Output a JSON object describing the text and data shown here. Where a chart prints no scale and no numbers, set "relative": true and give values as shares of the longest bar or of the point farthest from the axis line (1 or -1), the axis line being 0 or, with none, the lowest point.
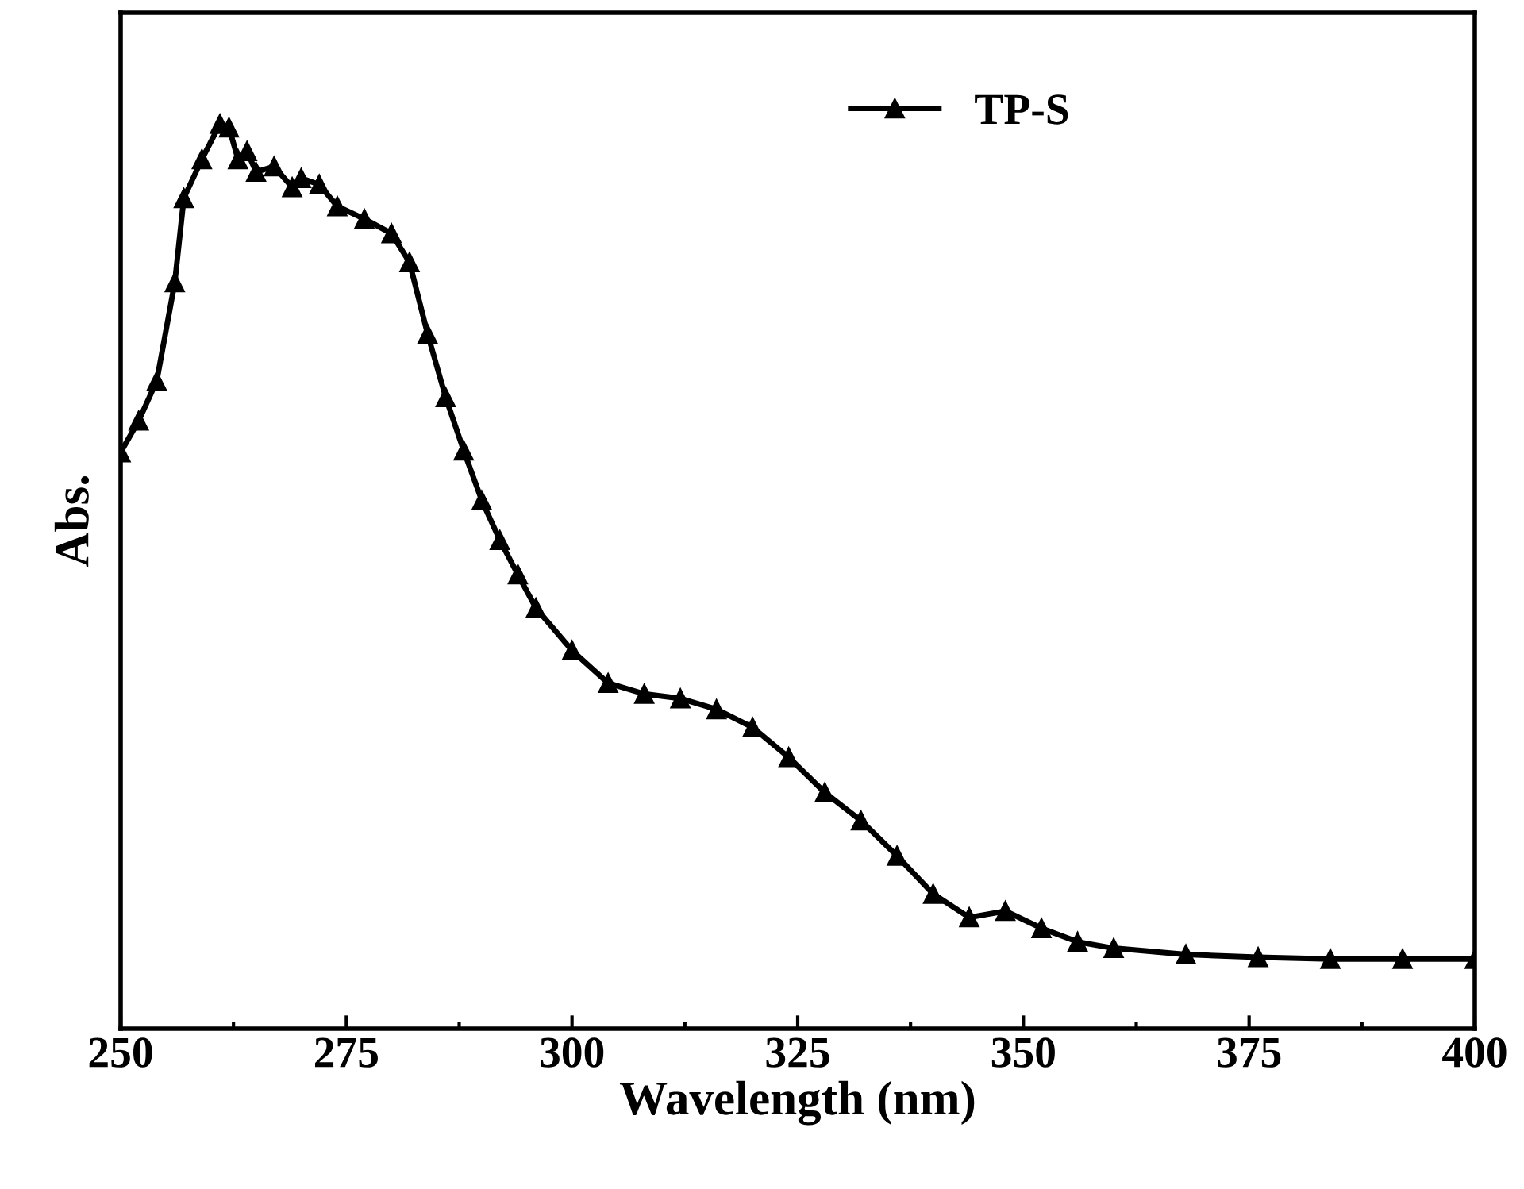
{
  "chart_data": {
    "type": "line",
    "xlabel": "Wavelength (nm)",
    "ylabel": "Abs.",
    "relative": true,
    "xlim": [
      250,
      400
    ],
    "xticks": [
      250,
      275,
      300,
      325,
      350,
      375,
      400
    ],
    "legend": "top",
    "marker": "triangle",
    "line_style": "solid",
    "grid": false,
    "tick_labels": "x",
    "x": [
      250,
      252,
      254,
      256,
      257,
      259,
      261,
      262,
      263,
      264,
      265,
      267,
      269,
      270,
      272,
      274,
      277,
      280,
      282,
      284,
      286,
      288,
      290,
      292,
      294,
      296,
      300,
      304,
      308,
      312,
      316,
      320,
      324,
      328,
      332,
      336,
      340,
      344,
      348,
      352,
      356,
      360,
      368,
      376,
      384,
      392,
      400
    ],
    "series": [
      {
        "name": "TP-S",
        "color": "#000000",
        "values": [
          0.637,
          0.672,
          0.716,
          0.825,
          0.918,
          0.961,
          1.0,
          0.996,
          0.961,
          0.97,
          0.947,
          0.953,
          0.93,
          0.94,
          0.933,
          0.909,
          0.895,
          0.879,
          0.847,
          0.768,
          0.698,
          0.639,
          0.584,
          0.54,
          0.502,
          0.465,
          0.418,
          0.382,
          0.37,
          0.365,
          0.353,
          0.333,
          0.3,
          0.261,
          0.23,
          0.191,
          0.149,
          0.123,
          0.13,
          0.111,
          0.096,
          0.089,
          0.082,
          0.079,
          0.077,
          0.077,
          0.077
        ]
      }
    ]
  }
}
